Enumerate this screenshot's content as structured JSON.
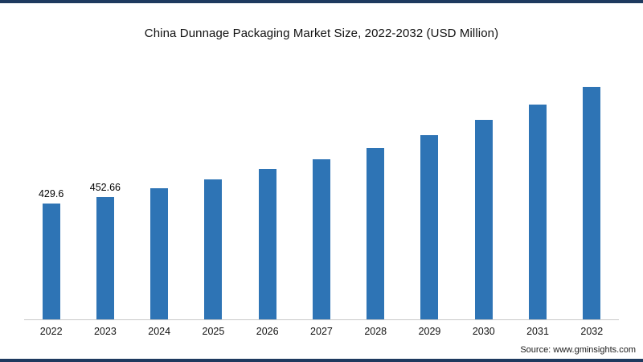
{
  "chart_data": {
    "type": "bar",
    "title": "China Dunnage Packaging Market Size, 2022-2032 (USD Million)",
    "categories": [
      "2022",
      "2023",
      "2024",
      "2025",
      "2026",
      "2027",
      "2028",
      "2029",
      "2030",
      "2031",
      "2032"
    ],
    "values": [
      429.6,
      452.66,
      487,
      520,
      556,
      593,
      636,
      684,
      738,
      797,
      860
    ],
    "data_labels": {
      "2022": "429.6",
      "2023": "452.66"
    },
    "xlabel": "",
    "ylabel": "",
    "ylim": [
      0,
      900
    ],
    "grid": false,
    "legend": "none",
    "bar_color": "#2e74b5",
    "axis_line_color": "#c9c9c9"
  },
  "footer": {
    "source": "Source: www.gminsights.com"
  }
}
